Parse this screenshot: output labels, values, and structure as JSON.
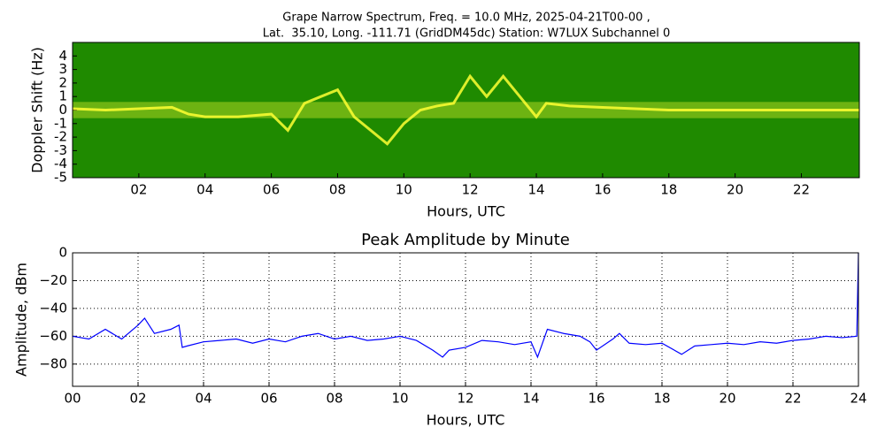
{
  "chart_data": [
    {
      "type": "spectrogram",
      "title": [
        "Grape Narrow Spectrum, Freq. = 10.0 MHz, 2025-04-21T00-00 ,",
        "Lat.  35.10, Long. -111.71 (GridDM45dc) Station: W7LUX Subchannel 0"
      ],
      "xlabel": "Hours, UTC",
      "ylabel": "Doppler Shift (Hz)",
      "xlim": [
        0,
        23.75
      ],
      "ylim": [
        -5,
        5
      ],
      "xticks": [
        {
          "value": 2,
          "label": "02"
        },
        {
          "value": 4,
          "label": "04"
        },
        {
          "value": 6,
          "label": "06"
        },
        {
          "value": 8,
          "label": "08"
        },
        10,
        12,
        14,
        16,
        18,
        20,
        22
      ],
      "yticks": [
        -5,
        -4,
        -3,
        -2,
        -1,
        0,
        1,
        2,
        3,
        4
      ],
      "background": "#1f8a00",
      "color": "#ffff33",
      "x": [
        0,
        1,
        2,
        3,
        3.5,
        4,
        5,
        6,
        6.5,
        7,
        7.5,
        8,
        8.5,
        9,
        9.5,
        10,
        10.5,
        11,
        11.5,
        12,
        12.5,
        13,
        13.5,
        14,
        14.3,
        15,
        16,
        17,
        18,
        20,
        22,
        23.75
      ],
      "values": [
        0.1,
        0,
        0.1,
        0.2,
        -0.3,
        -0.5,
        -0.5,
        -0.3,
        -1.5,
        0.5,
        1,
        1.5,
        -0.5,
        -1.5,
        -2.5,
        -1,
        0,
        0.3,
        0.5,
        2.5,
        1,
        2.5,
        1,
        -0.5,
        0.5,
        0.3,
        0.2,
        0.1,
        0,
        0,
        0,
        0
      ]
    },
    {
      "type": "line",
      "title": "Peak Amplitude by Minute",
      "xlabel": "Hours, UTC",
      "ylabel": "Amplitude, dBm",
      "xlim": [
        0,
        24
      ],
      "ylim": [
        -96,
        0
      ],
      "xticks": [
        {
          "value": 0,
          "label": "00"
        },
        {
          "value": 2,
          "label": "02"
        },
        {
          "value": 4,
          "label": "04"
        },
        {
          "value": 6,
          "label": "06"
        },
        {
          "value": 8,
          "label": "08"
        },
        10,
        12,
        14,
        16,
        18,
        20,
        22,
        24
      ],
      "yticks": [
        {
          "value": -80,
          "label": "−80"
        },
        {
          "value": -60,
          "label": "−60"
        },
        {
          "value": -40,
          "label": "−40"
        },
        {
          "value": -20,
          "label": "−20"
        },
        0
      ],
      "grid": true,
      "color": "#0000ff",
      "x": [
        0,
        0.5,
        1,
        1.5,
        2,
        2.2,
        2.5,
        3,
        3.25,
        3.35,
        3.5,
        4,
        4.5,
        5,
        5.5,
        6,
        6.5,
        7,
        7.5,
        8,
        8.5,
        9,
        9.5,
        10,
        10.5,
        11,
        11.3,
        11.5,
        12,
        12.5,
        13,
        13.5,
        14,
        14.2,
        14.5,
        15,
        15.5,
        15.8,
        16,
        16.5,
        16.7,
        17,
        17.5,
        18,
        18.6,
        19,
        19.5,
        20,
        20.5,
        21,
        21.5,
        22,
        22.5,
        23,
        23.5,
        23.95,
        24
      ],
      "values": [
        -60,
        -62,
        -55,
        -62,
        -52,
        -47,
        -58,
        -55,
        -52,
        -68,
        -67,
        -64,
        -63,
        -62,
        -65,
        -62,
        -64,
        -60,
        -58,
        -62,
        -60,
        -63,
        -62,
        -60,
        -63,
        -70,
        -75,
        -70,
        -68,
        -63,
        -64,
        -66,
        -64,
        -75,
        -55,
        -58,
        -60,
        -64,
        -70,
        -62,
        -58,
        -65,
        -66,
        -65,
        -73,
        -67,
        -66,
        -65,
        -66,
        -64,
        -65,
        -63,
        -62,
        -60,
        -61,
        -60,
        0
      ]
    }
  ]
}
